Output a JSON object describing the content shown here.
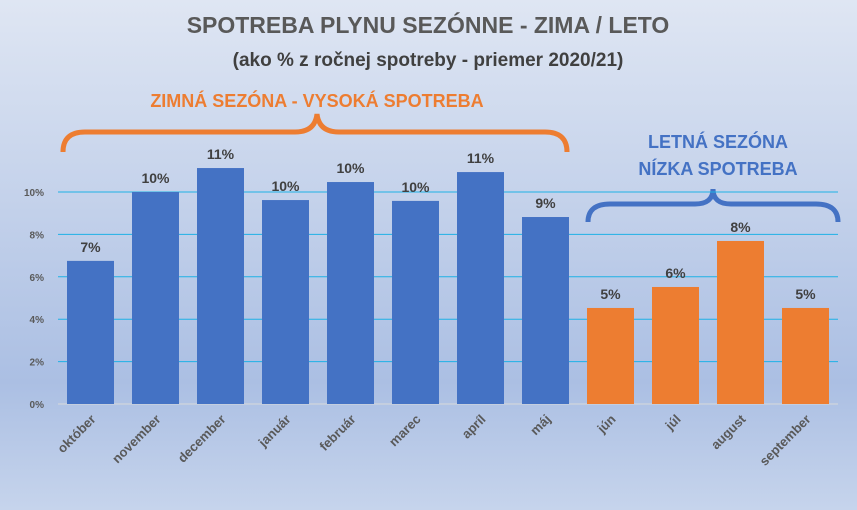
{
  "chart_data": {
    "type": "bar",
    "title": "SPOTREBA PLYNU SEZÓNNE - ZIMA / LETO",
    "subtitle": "(ako % z ročnej spotreby - priemer 2020/21)",
    "categories": [
      "október",
      "november",
      "december",
      "január",
      "február",
      "marec",
      "apríl",
      "máj",
      "jún",
      "júl",
      "august",
      "september"
    ],
    "values": [
      6.75,
      10.0,
      11.13,
      9.62,
      10.47,
      9.58,
      10.94,
      8.82,
      4.53,
      5.52,
      7.69,
      4.53
    ],
    "data_labels": [
      "7%",
      "10%",
      "11%",
      "10%",
      "10%",
      "10%",
      "11%",
      "9%",
      "5%",
      "6%",
      "8%",
      "5%"
    ],
    "season": [
      "winter",
      "winter",
      "winter",
      "winter",
      "winter",
      "winter",
      "winter",
      "winter",
      "summer",
      "summer",
      "summer",
      "summer"
    ],
    "ylim": [
      0,
      12
    ],
    "yticks": [
      0,
      2,
      4,
      6,
      8,
      10
    ],
    "ytick_labels": [
      "0%",
      "2%",
      "4%",
      "6%",
      "8%",
      "10%"
    ],
    "grid": true,
    "xlabel": "",
    "ylabel": "",
    "annotations": {
      "winter": "ZIMNÁ SEZÓNA - VYSOKÁ SPOTREBA",
      "summer_line1": "LETNÁ SEZÓNA",
      "summer_line2": "NÍZKA SPOTREBA"
    },
    "colors": {
      "winter": "#4472C4",
      "summer": "#ED7D31",
      "grid": "#1EB1E6",
      "title": "#595959",
      "bg_top": "#DCE3F2",
      "bg_mid": "#ABBFE3"
    }
  }
}
